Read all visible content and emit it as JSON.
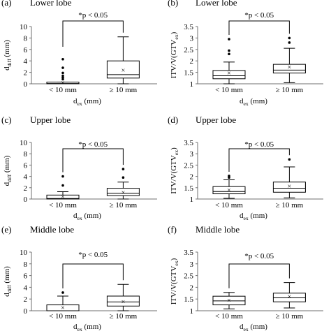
{
  "panels": [
    {
      "letter": "(a)",
      "title": "Lower lobe"
    },
    {
      "letter": "(b)",
      "title": "Lower lobe"
    },
    {
      "letter": "(c)",
      "title": "Upper lobe"
    },
    {
      "letter": "(d)",
      "title": "Upper lobe"
    },
    {
      "letter": "(e)",
      "title": "Middle lobe"
    },
    {
      "letter": "(f)",
      "title": "Middle lobe"
    }
  ],
  "chart_data": [
    {
      "type": "box",
      "ylabel": "d_diff (mm)",
      "xlabel": "d_ex (mm)",
      "categories": [
        "< 10 mm",
        "≥ 10 mm"
      ],
      "ylim": [
        0,
        10
      ],
      "yticks": [
        0,
        2,
        4,
        6,
        8,
        10
      ],
      "significance": "*p < 0.05",
      "boxes": [
        {
          "min": 0,
          "q1": 0,
          "median": 0.05,
          "q3": 0.3,
          "max": 0.3,
          "mean": 0.15,
          "outliers": [
            0.8,
            1.1,
            1.4,
            1.9,
            2.8,
            4.3
          ]
        },
        {
          "min": 0,
          "q1": 1.0,
          "median": 1.6,
          "q3": 4.0,
          "max": 8.2,
          "mean": 2.3,
          "outliers": []
        }
      ]
    },
    {
      "type": "box",
      "ylabel": "ITV/V(GTV_ex)",
      "xlabel": "d_ex (mm)",
      "categories": [
        "< 10 mm",
        "≥ 10 mm"
      ],
      "ylim": [
        1,
        3.5
      ],
      "yticks": [
        1,
        1.5,
        2,
        2.5,
        3,
        3.5
      ],
      "significance": "*p < 0.05",
      "boxes": [
        {
          "min": 1.0,
          "q1": 1.22,
          "median": 1.35,
          "q3": 1.58,
          "max": 1.95,
          "mean": 1.45,
          "outliers": [
            2.3,
            2.45,
            2.95
          ]
        },
        {
          "min": 1.05,
          "q1": 1.47,
          "median": 1.6,
          "q3": 1.85,
          "max": 2.55,
          "mean": 1.72,
          "outliers": [
            2.8,
            3.0
          ]
        }
      ]
    },
    {
      "type": "box",
      "ylabel": "d_diff (mm)",
      "xlabel": "d_ex (mm)",
      "categories": [
        "< 10 mm",
        "≥ 10 mm"
      ],
      "ylim": [
        0,
        10
      ],
      "yticks": [
        0,
        2,
        4,
        6,
        8,
        10
      ],
      "significance": "*p < 0.05",
      "boxes": [
        {
          "min": 0,
          "q1": 0,
          "median": 0.1,
          "q3": 0.7,
          "max": 1.3,
          "mean": 0.4,
          "outliers": [
            2.4,
            4.0
          ]
        },
        {
          "min": 0,
          "q1": 0.6,
          "median": 1.0,
          "q3": 1.9,
          "max": 3.0,
          "mean": 1.1,
          "outliers": [
            3.8,
            5.3
          ]
        }
      ]
    },
    {
      "type": "box",
      "ylabel": "ITV/V(GTV_ex)",
      "xlabel": "d_ex (mm)",
      "categories": [
        "< 10 mm",
        "≥ 10 mm"
      ],
      "ylim": [
        1,
        3.5
      ],
      "yticks": [
        1,
        1.5,
        2,
        2.5,
        3,
        3.5
      ],
      "significance": "*p < 0.05",
      "boxes": [
        {
          "min": 1.03,
          "q1": 1.23,
          "median": 1.33,
          "q3": 1.55,
          "max": 1.85,
          "mean": 1.38,
          "outliers": [
            1.95,
            2.02
          ]
        },
        {
          "min": 1.05,
          "q1": 1.3,
          "median": 1.48,
          "q3": 1.75,
          "max": 2.42,
          "mean": 1.55,
          "outliers": [
            2.75
          ]
        }
      ]
    },
    {
      "type": "box",
      "ylabel": "d_diff (mm)",
      "xlabel": "d_ex (mm)",
      "categories": [
        "< 10 mm",
        "≥ 10 mm"
      ],
      "ylim": [
        0,
        10
      ],
      "yticks": [
        0,
        2,
        4,
        6,
        8,
        10
      ],
      "significance": "*p < 0.05",
      "boxes": [
        {
          "min": 0,
          "q1": 0,
          "median": 0,
          "q3": 1.0,
          "max": 2.5,
          "mean": 0.5,
          "outliers": [
            3.1
          ]
        },
        {
          "min": 0,
          "q1": 0.8,
          "median": 1.5,
          "q3": 2.5,
          "max": 4.5,
          "mean": 1.5,
          "outliers": []
        }
      ]
    },
    {
      "type": "box",
      "ylabel": "ITV/V(GTV_ex)",
      "xlabel": "d_ex (mm)",
      "categories": [
        "< 10 mm",
        "≥ 10 mm"
      ],
      "ylim": [
        1,
        3.5
      ],
      "yticks": [
        1,
        1.5,
        2,
        2.5,
        3,
        3.5
      ],
      "significance": "*p < 0.05",
      "boxes": [
        {
          "min": 1.08,
          "q1": 1.25,
          "median": 1.42,
          "q3": 1.62,
          "max": 1.78,
          "mean": 1.43,
          "outliers": []
        },
        {
          "min": 1.12,
          "q1": 1.38,
          "median": 1.55,
          "q3": 1.75,
          "max": 2.2,
          "mean": 1.6,
          "outliers": []
        }
      ]
    }
  ]
}
